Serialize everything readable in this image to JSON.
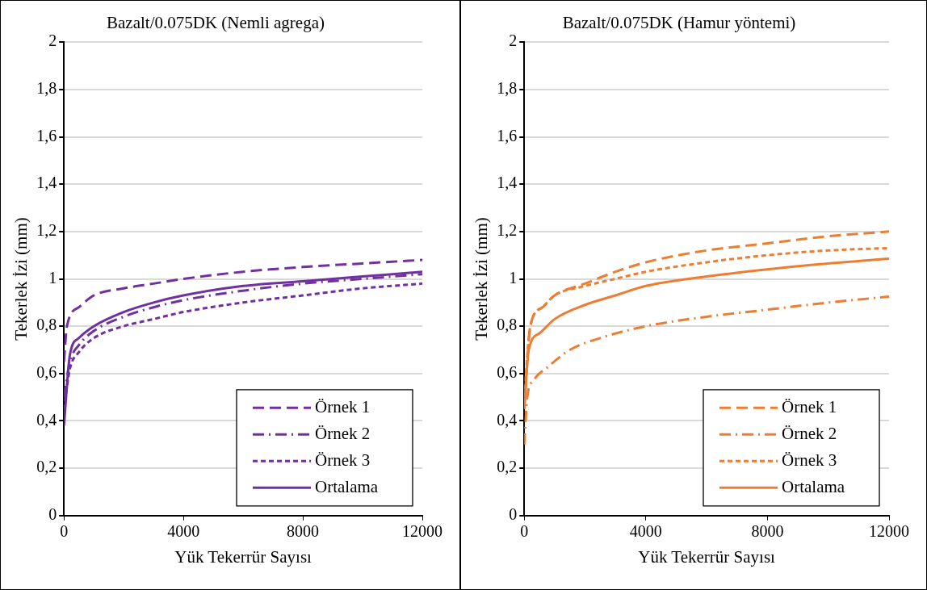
{
  "chart_data": [
    {
      "type": "line",
      "title": "Bazalt/0.075DK (Nemli agrega)",
      "xlabel": "Yük Tekerrür Sayısı",
      "ylabel": "Tekerlek İzi (mm)",
      "xlim": [
        0,
        12000
      ],
      "xticks": [
        0,
        4000,
        8000,
        12000
      ],
      "ylim": [
        0,
        2
      ],
      "yticks": [
        0,
        {
          "value": 0.2,
          "label": "0,2"
        },
        {
          "value": 0.4,
          "label": "0,4"
        },
        {
          "value": 0.6,
          "label": "0,6"
        },
        {
          "value": 0.8,
          "label": "0,8"
        },
        1,
        {
          "value": 1.2,
          "label": "1,2"
        },
        {
          "value": 1.4,
          "label": "1,4"
        },
        {
          "value": 1.6,
          "label": "1,6"
        },
        {
          "value": 1.8,
          "label": "1,8"
        },
        2
      ],
      "grid": "y",
      "legend": "bottom right",
      "marker": "none",
      "series": [
        {
          "name": "Örnek 1",
          "color": "#7030a0",
          "line_style": "dashed",
          "x": [
            0,
            100,
            500,
            1000,
            2000,
            3000,
            4000,
            6000,
            8000,
            10000,
            12000
          ],
          "values": [
            0.65,
            0.8,
            0.88,
            0.93,
            0.96,
            0.98,
            1.0,
            1.03,
            1.05,
            1.065,
            1.08
          ]
        },
        {
          "name": "Örnek 2",
          "color": "#7030a0",
          "line_style": "dashdot",
          "x": [
            0,
            200,
            500,
            1000,
            2000,
            3000,
            4000,
            6000,
            8000,
            10000,
            12000
          ],
          "values": [
            0.5,
            0.65,
            0.72,
            0.78,
            0.84,
            0.88,
            0.91,
            0.95,
            0.98,
            1.0,
            1.02
          ]
        },
        {
          "name": "Örnek 3",
          "color": "#7030a0",
          "line_style": "dotted",
          "x": [
            0,
            200,
            500,
            1000,
            2000,
            3000,
            4000,
            6000,
            8000,
            10000,
            12000
          ],
          "values": [
            0.45,
            0.62,
            0.69,
            0.75,
            0.8,
            0.83,
            0.86,
            0.9,
            0.93,
            0.96,
            0.98
          ]
        },
        {
          "name": "Ortalama",
          "color": "#7030a0",
          "line_style": "solid",
          "x": [
            0,
            200,
            500,
            1000,
            2000,
            3000,
            4000,
            6000,
            8000,
            10000,
            12000
          ],
          "values": [
            0.38,
            0.68,
            0.75,
            0.8,
            0.86,
            0.9,
            0.93,
            0.97,
            0.99,
            1.01,
            1.03
          ]
        }
      ]
    },
    {
      "type": "line",
      "title": "Bazalt/0.075DK (Hamur yöntemi)",
      "xlabel": "Yük Tekerrür Sayısı",
      "ylabel": "Tekerlek İzi (mm)",
      "xlim": [
        0,
        12000
      ],
      "xticks": [
        0,
        4000,
        8000,
        12000
      ],
      "ylim": [
        0,
        2
      ],
      "yticks": [
        0,
        {
          "value": 0.2,
          "label": "0,2"
        },
        {
          "value": 0.4,
          "label": "0,4"
        },
        {
          "value": 0.6,
          "label": "0,6"
        },
        {
          "value": 0.8,
          "label": "0,8"
        },
        1,
        {
          "value": 1.2,
          "label": "1,2"
        },
        {
          "value": 1.4,
          "label": "1,4"
        },
        {
          "value": 1.6,
          "label": "1,6"
        },
        {
          "value": 1.8,
          "label": "1,8"
        },
        2
      ],
      "grid": "y",
      "legend": "bottom right",
      "marker": "none",
      "series": [
        {
          "name": "Örnek 1",
          "color": "#ed7d31",
          "line_style": "dashed",
          "x": [
            0,
            200,
            600,
            1000,
            2000,
            3000,
            4000,
            6000,
            8000,
            10000,
            12000
          ],
          "values": [
            0.45,
            0.8,
            0.88,
            0.93,
            0.98,
            1.03,
            1.07,
            1.12,
            1.15,
            1.18,
            1.2
          ]
        },
        {
          "name": "Örnek 2",
          "color": "#ed7d31",
          "line_style": "dashdot",
          "x": [
            0,
            100,
            300,
            800,
            1500,
            2500,
            4000,
            6000,
            8000,
            10000,
            12000
          ],
          "values": [
            0.3,
            0.5,
            0.57,
            0.63,
            0.7,
            0.75,
            0.8,
            0.84,
            0.87,
            0.9,
            0.925
          ]
        },
        {
          "name": "Örnek 3",
          "color": "#ed7d31",
          "line_style": "dotted",
          "x": [
            0,
            200,
            600,
            1000,
            2000,
            3000,
            4000,
            6000,
            8000,
            10000,
            12000
          ],
          "values": [
            0.5,
            0.8,
            0.88,
            0.93,
            0.97,
            1.0,
            1.03,
            1.07,
            1.1,
            1.12,
            1.13
          ]
        },
        {
          "name": "Ortalama",
          "color": "#ed7d31",
          "line_style": "solid",
          "x": [
            0,
            150,
            500,
            1000,
            2000,
            3000,
            4000,
            6000,
            8000,
            10000,
            12000
          ],
          "values": [
            0.45,
            0.7,
            0.77,
            0.83,
            0.89,
            0.93,
            0.97,
            1.01,
            1.04,
            1.065,
            1.085
          ]
        }
      ]
    }
  ]
}
